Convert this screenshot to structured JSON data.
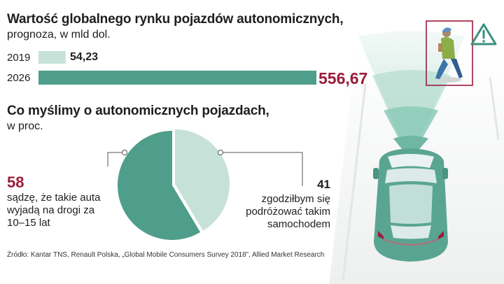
{
  "header": {
    "title": "Wartość globalnego rynku pojazdów autonomicznych,",
    "subtitle": "prognoza, w mld dol."
  },
  "survey": {
    "title": "Co myślimy o autonomicznych pojazdach,",
    "subtitle": "w proc.",
    "left": {
      "value": "58",
      "text": "sądzę, że takie auta wyjadą na drogi za 10–15 lat"
    },
    "right": {
      "value": "41",
      "text": "zgodziłbym się podróżować takim samochodem"
    }
  },
  "source": "Źródło: Kantar TNS, Renault Polska, „Global Mobile Consumers Survey 2018”, Allied Market Research",
  "colors": {
    "bar2019": "#c6e1d8",
    "bar2026": "#4f9d8b",
    "pie_dark": "#4f9d8b",
    "pie_light": "#c6e1d8",
    "accent_red": "#9b1c3a",
    "beam": "#a9d6c8",
    "car": "#5aa592"
  },
  "icons": [
    "warning-icon",
    "pedestrian-icon",
    "car-icon"
  ],
  "chart_data": [
    {
      "type": "bar",
      "orientation": "horizontal",
      "categories": [
        "2019",
        "2026"
      ],
      "values": [
        54.23,
        556.67
      ],
      "value_labels": [
        "54,23",
        "556,67"
      ],
      "title": "Wartość globalnego rynku pojazdów autonomicznych,",
      "subtitle": "prognoza, w mld dol."
    },
    {
      "type": "pie",
      "title": "Co myślimy o autonomicznych pojazdach,",
      "subtitle": "w proc.",
      "labels": [
        "sądzę, że takie auta wyjadą na drogi za 10–15 lat",
        "zgodziłbym się podróżować takim samochodem"
      ],
      "values": [
        58,
        41
      ]
    }
  ]
}
